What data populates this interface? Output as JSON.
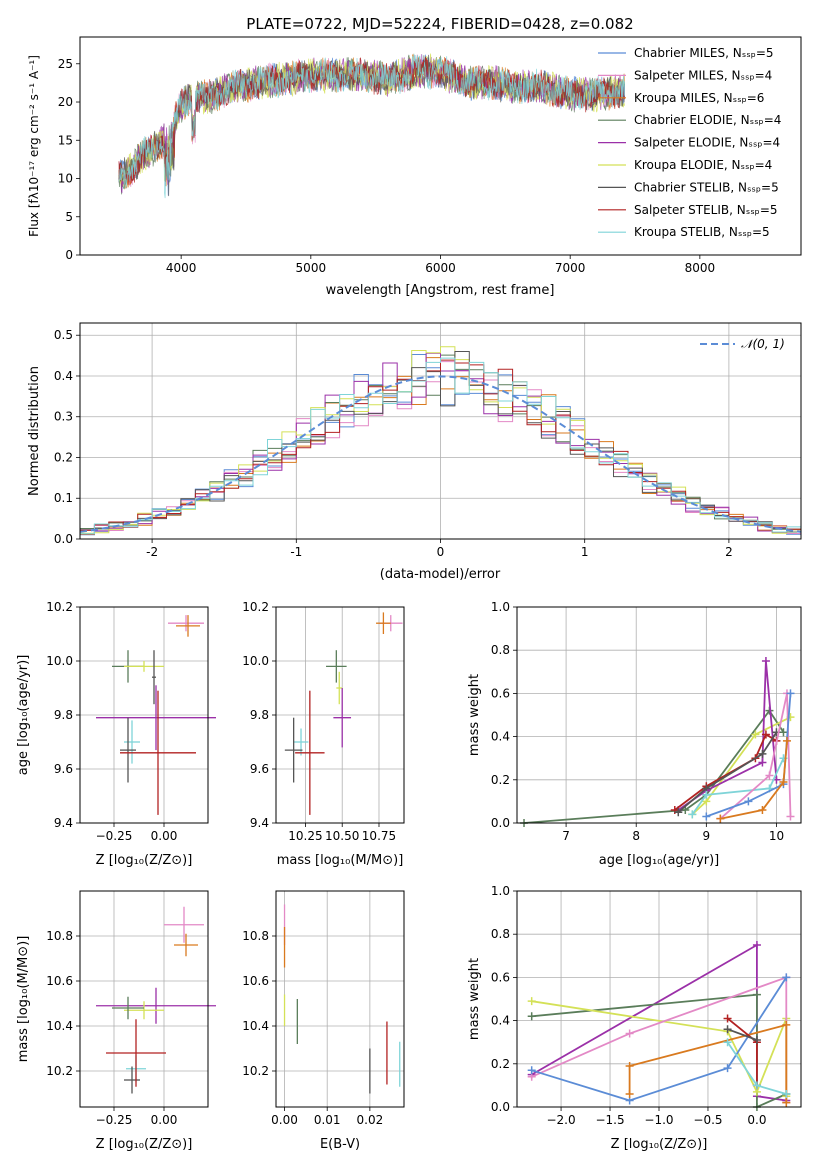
{
  "chart_data": [
    {
      "id": "spectrum",
      "type": "line",
      "title": "PLATE=0722, MJD=52224, FIBERID=0428, z=0.082",
      "xlabel": "wavelength [Angstrom, rest frame]",
      "ylabel": "Flux [fλ10⁻¹⁷ erg cm⁻² s⁻¹ A⁻¹]",
      "xlim": [
        3220,
        8780
      ],
      "ylim": [
        0,
        28.5
      ],
      "xticks": [
        4000,
        5000,
        6000,
        7000,
        8000
      ],
      "yticks": [
        0,
        5,
        10,
        15,
        20,
        25
      ],
      "legend_position": "right",
      "spectrum_anchor_points": {
        "x": [
          3520,
          3600,
          3700,
          3800,
          3900,
          4000,
          4100,
          4200,
          4400,
          4600,
          4800,
          5000,
          5200,
          5400,
          5600,
          5800,
          6000,
          6200,
          6400,
          6600,
          6800,
          7000,
          7200,
          7400
        ],
        "y": [
          10,
          11,
          13,
          14,
          15.5,
          19.5,
          21,
          20.5,
          22,
          22.5,
          23,
          23.5,
          23.5,
          23.5,
          23,
          24,
          24,
          22.5,
          22.5,
          22,
          22,
          21,
          21,
          21.5
        ]
      },
      "series": [
        {
          "name": "Chabrier MILES, N_SSP=5",
          "color": "#5b8cd6"
        },
        {
          "name": "Salpeter MILES, N_SSP=4",
          "color": "#e389c6"
        },
        {
          "name": "Kroupa MILES, N_SSP=6",
          "color": "#d97a1f"
        },
        {
          "name": "Chabrier ELODIE, N_SSP=4",
          "color": "#5a7d5a"
        },
        {
          "name": "Salpeter ELODIE, N_SSP=4",
          "color": "#9b30a8"
        },
        {
          "name": "Kroupa ELODIE, N_SSP=4",
          "color": "#d4e157"
        },
        {
          "name": "Chabrier STELIB, N_SSP=5",
          "color": "#555555"
        },
        {
          "name": "Salpeter STELIB, N_SSP=5",
          "color": "#b22222"
        },
        {
          "name": "Kroupa STELIB, N_SSP=5",
          "color": "#7fd4d8"
        }
      ]
    },
    {
      "id": "residuals",
      "type": "bar",
      "xlabel": "(data-model)/error",
      "ylabel": "Normed distribution",
      "xlim": [
        -2.5,
        2.5
      ],
      "ylim": [
        0,
        0.53
      ],
      "xticks": [
        -2,
        -1,
        0,
        1,
        2
      ],
      "yticks": [
        0.0,
        0.1,
        0.2,
        0.3,
        0.4,
        0.5
      ],
      "legend": {
        "label": "𝒩(0, 1)",
        "position": "top-right"
      },
      "bin_width": 0.1,
      "bin_start": -2.5,
      "bin_end": 2.5,
      "gaussian": {
        "mean": 0,
        "sigma": 1,
        "color": "#5b8cd6"
      }
    },
    {
      "id": "age-vs-Z",
      "type": "scatter",
      "xlabel": "Z [log₁₀(Z/Z⊙)]",
      "ylabel": "age  [log₁₀(age/yr)]",
      "xlim": [
        -0.42,
        0.22
      ],
      "ylim": [
        9.4,
        10.2
      ],
      "xticks": [
        -0.25,
        0.0
      ],
      "xtick_labels": [
        "−0.25",
        "0.00"
      ],
      "yticks": [
        9.4,
        9.6,
        9.8,
        10.0,
        10.2
      ],
      "points": [
        {
          "x": 0.11,
          "y": 10.14,
          "xerr": 0.09,
          "yerr": 0.03,
          "color": "#e389c6"
        },
        {
          "x": 0.12,
          "y": 10.13,
          "xerr": 0.06,
          "yerr": 0.04,
          "color": "#d97a1f"
        },
        {
          "x": -0.18,
          "y": 9.98,
          "xerr": 0.08,
          "yerr": 0.06,
          "color": "#5a7d5a"
        },
        {
          "x": -0.1,
          "y": 9.98,
          "xerr": 0.1,
          "yerr": 0.02,
          "color": "#d4e157"
        },
        {
          "x": -0.04,
          "y": 9.79,
          "xerr": 0.3,
          "yerr": 0.12,
          "color": "#9b30a8"
        },
        {
          "x": -0.16,
          "y": 9.7,
          "xerr": 0.04,
          "yerr": 0.08,
          "color": "#7fd4d8"
        },
        {
          "x": -0.18,
          "y": 9.67,
          "xerr": 0.04,
          "yerr": 0.12,
          "color": "#555555"
        },
        {
          "x": -0.03,
          "y": 9.66,
          "xerr": 0.19,
          "yerr": 0.23,
          "color": "#b22222"
        },
        {
          "x": -0.05,
          "y": 9.94,
          "xerr": 0.01,
          "yerr": 0.1,
          "color": "#555555"
        }
      ]
    },
    {
      "id": "age-vs-mass",
      "type": "scatter",
      "xlabel": "mass [log₁₀(M/M⊙)]",
      "xlim": [
        10.05,
        10.92
      ],
      "ylim": [
        9.4,
        10.2
      ],
      "xticks": [
        10.25,
        10.5,
        10.75
      ],
      "xtick_labels": [
        "10.25",
        "10.50",
        "10.75"
      ],
      "yticks": [
        9.4,
        9.6,
        9.8,
        10.0,
        10.2
      ],
      "points": [
        {
          "x": 10.83,
          "y": 10.14,
          "xerr": 0.08,
          "yerr": 0.03,
          "color": "#e389c6"
        },
        {
          "x": 10.78,
          "y": 10.14,
          "xerr": 0.05,
          "yerr": 0.04,
          "color": "#d97a1f"
        },
        {
          "x": 10.46,
          "y": 9.98,
          "xerr": 0.07,
          "yerr": 0.06,
          "color": "#5a7d5a"
        },
        {
          "x": 10.48,
          "y": 9.9,
          "xerr": 0.02,
          "yerr": 0.06,
          "color": "#d4e157"
        },
        {
          "x": 10.5,
          "y": 9.79,
          "xerr": 0.06,
          "yerr": 0.11,
          "color": "#9b30a8"
        },
        {
          "x": 10.22,
          "y": 9.7,
          "xerr": 0.05,
          "yerr": 0.05,
          "color": "#7fd4d8"
        },
        {
          "x": 10.17,
          "y": 9.67,
          "xerr": 0.06,
          "yerr": 0.12,
          "color": "#555555"
        },
        {
          "x": 10.28,
          "y": 9.66,
          "xerr": 0.1,
          "yerr": 0.23,
          "color": "#b22222"
        }
      ]
    },
    {
      "id": "mass-weight-vs-age",
      "type": "line",
      "xlabel": "age  [log₁₀(age/yr)]",
      "ylabel": "mass weight",
      "xlim": [
        6.3,
        10.35
      ],
      "ylim": [
        0,
        1.0
      ],
      "xticks": [
        7,
        8,
        9,
        10
      ],
      "yticks": [
        0.0,
        0.2,
        0.4,
        0.6,
        0.8,
        1.0
      ],
      "series": [
        {
          "color": "#5a7d5a",
          "x": [
            6.4,
            8.7,
            9.0,
            9.9,
            10.1
          ],
          "y": [
            0.0,
            0.06,
            0.13,
            0.52,
            0.42
          ]
        },
        {
          "color": "#d4e157",
          "x": [
            8.8,
            9.0,
            9.7,
            10.2
          ],
          "y": [
            0.04,
            0.1,
            0.41,
            0.49
          ]
        },
        {
          "color": "#9b30a8",
          "x": [
            8.6,
            9.0,
            9.8,
            9.85,
            10.0
          ],
          "y": [
            0.06,
            0.15,
            0.28,
            0.75,
            0.2
          ]
        },
        {
          "color": "#b22222",
          "x": [
            8.55,
            9.0,
            9.7,
            9.85,
            10.0
          ],
          "y": [
            0.06,
            0.17,
            0.3,
            0.41,
            0.38
          ]
        },
        {
          "color": "#555555",
          "x": [
            8.6,
            9.0,
            9.8,
            10.0
          ],
          "y": [
            0.05,
            0.16,
            0.32,
            0.42
          ]
        },
        {
          "color": "#7fd4d8",
          "x": [
            8.8,
            9.0,
            9.9,
            10.1
          ],
          "y": [
            0.04,
            0.13,
            0.16,
            0.3
          ]
        },
        {
          "color": "#e389c6",
          "x": [
            9.2,
            9.9,
            10.15,
            10.2
          ],
          "y": [
            0.02,
            0.22,
            0.6,
            0.03
          ]
        },
        {
          "color": "#5b8cd6",
          "x": [
            9.0,
            9.6,
            10.1,
            10.2
          ],
          "y": [
            0.03,
            0.1,
            0.18,
            0.6
          ]
        },
        {
          "color": "#d97a1f",
          "x": [
            9.2,
            9.8,
            10.1,
            10.15
          ],
          "y": [
            0.02,
            0.06,
            0.19,
            0.38
          ]
        }
      ]
    },
    {
      "id": "mass-vs-Z",
      "type": "scatter",
      "xlabel": "Z [log₁₀(Z/Z⊙)]",
      "ylabel": "mass [log₁₀(M/M⊙)]",
      "xlim": [
        -0.42,
        0.22
      ],
      "ylim": [
        10.04,
        11.0
      ],
      "xticks": [
        -0.25,
        0.0
      ],
      "xtick_labels": [
        "−0.25",
        "0.00"
      ],
      "yticks": [
        10.2,
        10.4,
        10.6,
        10.8
      ],
      "points": [
        {
          "x": 0.1,
          "y": 10.85,
          "xerr": 0.1,
          "yerr": 0.08,
          "color": "#e389c6"
        },
        {
          "x": 0.11,
          "y": 10.76,
          "xerr": 0.06,
          "yerr": 0.05,
          "color": "#d97a1f"
        },
        {
          "x": -0.04,
          "y": 10.49,
          "xerr": 0.3,
          "yerr": 0.08,
          "color": "#9b30a8"
        },
        {
          "x": -0.1,
          "y": 10.47,
          "xerr": 0.1,
          "yerr": 0.04,
          "color": "#d4e157"
        },
        {
          "x": -0.18,
          "y": 10.48,
          "xerr": 0.08,
          "yerr": 0.05,
          "color": "#5a7d5a"
        },
        {
          "x": -0.14,
          "y": 10.21,
          "xerr": 0.05,
          "yerr": 0.06,
          "color": "#7fd4d8"
        },
        {
          "x": -0.16,
          "y": 10.16,
          "xerr": 0.04,
          "yerr": 0.06,
          "color": "#555555"
        },
        {
          "x": -0.14,
          "y": 10.28,
          "xerr": 0.15,
          "yerr": 0.15,
          "color": "#b22222"
        }
      ]
    },
    {
      "id": "mass-vs-EBV",
      "type": "scatter",
      "xlabel": "E(B-V)",
      "xlim": [
        -0.002,
        0.028
      ],
      "ylim": [
        10.04,
        11.0
      ],
      "xticks": [
        0.0,
        0.01,
        0.02
      ],
      "xtick_labels": [
        "0.00",
        "0.01",
        "0.02"
      ],
      "yticks": [
        10.2,
        10.4,
        10.6,
        10.8
      ],
      "points": [
        {
          "x": 0.0,
          "y": 10.85,
          "xerr": 0,
          "yerr": 0.09,
          "color": "#e389c6"
        },
        {
          "x": 0.0,
          "y": 10.75,
          "xerr": 0,
          "yerr": 0.09,
          "color": "#d97a1f"
        },
        {
          "x": 0.0,
          "y": 10.47,
          "xerr": 0,
          "yerr": 0.07,
          "color": "#d4e157"
        },
        {
          "x": 0.003,
          "y": 10.42,
          "xerr": 0,
          "yerr": 0.1,
          "color": "#5a7d5a"
        },
        {
          "x": 0.02,
          "y": 10.2,
          "xerr": 0,
          "yerr": 0.1,
          "color": "#555555"
        },
        {
          "x": 0.024,
          "y": 10.28,
          "xerr": 0,
          "yerr": 0.14,
          "color": "#b22222"
        },
        {
          "x": 0.027,
          "y": 10.23,
          "xerr": 0,
          "yerr": 0.1,
          "color": "#7fd4d8"
        }
      ]
    },
    {
      "id": "mass-weight-vs-Z",
      "type": "line",
      "xlabel": "Z [log₁₀(Z/Z⊙)]",
      "ylabel": "mass weight",
      "xlim": [
        -2.45,
        0.45
      ],
      "ylim": [
        0,
        1.0
      ],
      "xticks": [
        -2.0,
        -1.5,
        -1.0,
        -0.5,
        0.0
      ],
      "xtick_labels": [
        "−2.0",
        "−1.5",
        "−1.0",
        "−0.5",
        "0.0"
      ],
      "yticks": [
        0.0,
        0.2,
        0.4,
        0.6,
        0.8,
        1.0
      ],
      "series": [
        {
          "color": "#9b30a8",
          "x": [
            -2.3,
            0.0,
            0.0,
            0.3
          ],
          "y": [
            0.15,
            0.75,
            0.05,
            0.03
          ]
        },
        {
          "color": "#5a7d5a",
          "x": [
            -2.3,
            0.0,
            0.0,
            0.3
          ],
          "y": [
            0.42,
            0.52,
            0.0,
            0.06
          ]
        },
        {
          "color": "#d4e157",
          "x": [
            -2.3,
            -0.3,
            0.0,
            0.3,
            0.3
          ],
          "y": [
            0.49,
            0.35,
            0.07,
            0.41,
            0.05
          ]
        },
        {
          "color": "#e389c6",
          "x": [
            -2.3,
            -1.3,
            0.3,
            0.3
          ],
          "y": [
            0.14,
            0.34,
            0.6,
            0.02
          ]
        },
        {
          "color": "#5b8cd6",
          "x": [
            -2.3,
            -1.3,
            -0.3,
            0.3
          ],
          "y": [
            0.17,
            0.03,
            0.18,
            0.6
          ]
        },
        {
          "color": "#d97a1f",
          "x": [
            -1.3,
            -1.3,
            0.3,
            0.3
          ],
          "y": [
            0.06,
            0.19,
            0.38,
            0.02
          ]
        },
        {
          "color": "#b22222",
          "x": [
            -0.3,
            0.0,
            0.0
          ],
          "y": [
            0.41,
            0.3,
            0.1
          ]
        },
        {
          "color": "#555555",
          "x": [
            -0.3,
            0.0
          ],
          "y": [
            0.36,
            0.31
          ]
        },
        {
          "color": "#7fd4d8",
          "x": [
            -0.3,
            0.0,
            0.3
          ],
          "y": [
            0.3,
            0.1,
            0.06
          ]
        }
      ]
    }
  ]
}
